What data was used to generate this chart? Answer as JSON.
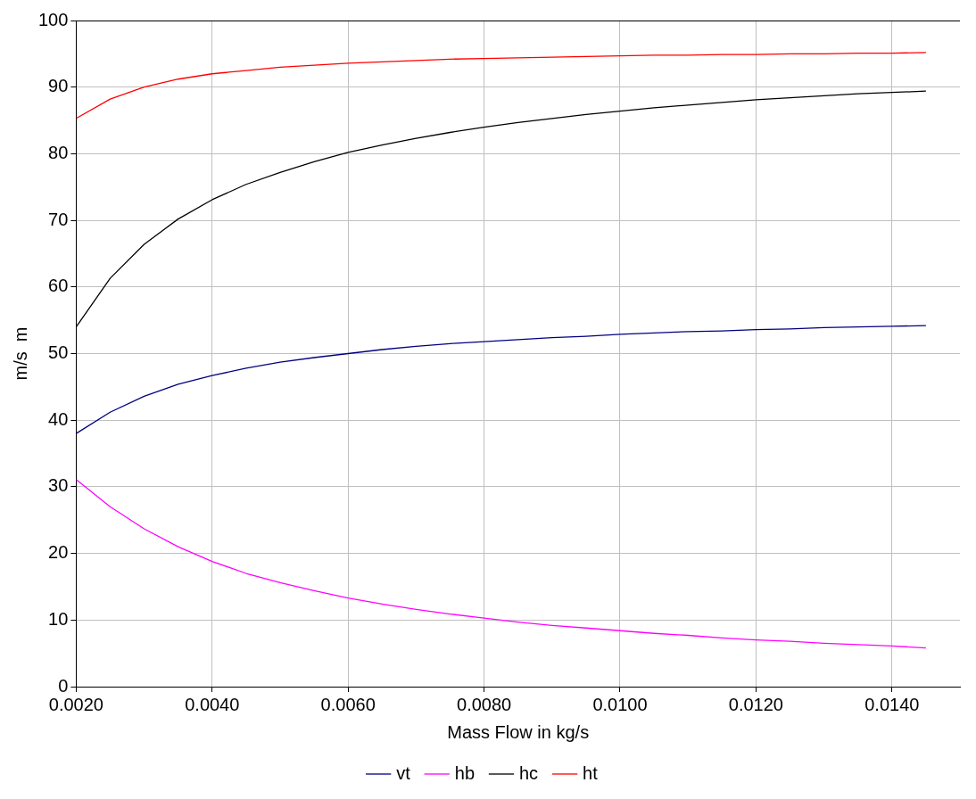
{
  "chart_data": {
    "type": "line",
    "xlabel": "Mass Flow in kg/s",
    "ylabel": "m/s  m",
    "x": [
      0.002,
      0.0025,
      0.003,
      0.0035,
      0.004,
      0.0045,
      0.005,
      0.0055,
      0.006,
      0.0065,
      0.007,
      0.0075,
      0.008,
      0.0085,
      0.009,
      0.0095,
      0.01,
      0.0105,
      0.011,
      0.0115,
      0.012,
      0.0125,
      0.013,
      0.0135,
      0.014,
      0.0145
    ],
    "series": [
      {
        "name": "vt",
        "color": "#000080",
        "values": [
          38.0,
          41.2,
          43.6,
          45.4,
          46.7,
          47.8,
          48.7,
          49.4,
          50.0,
          50.6,
          51.1,
          51.5,
          51.8,
          52.1,
          52.4,
          52.6,
          52.9,
          53.1,
          53.3,
          53.4,
          53.6,
          53.7,
          53.9,
          54.0,
          54.1,
          54.2
        ]
      },
      {
        "name": "hb",
        "color": "#ff00ff",
        "values": [
          31.1,
          27.0,
          23.7,
          21.0,
          18.8,
          17.0,
          15.6,
          14.4,
          13.3,
          12.4,
          11.6,
          10.9,
          10.3,
          9.7,
          9.2,
          8.8,
          8.4,
          8.0,
          7.7,
          7.3,
          7.0,
          6.8,
          6.5,
          6.3,
          6.1,
          5.8
        ]
      },
      {
        "name": "hc",
        "color": "#000000",
        "values": [
          54.0,
          61.3,
          66.4,
          70.2,
          73.1,
          75.4,
          77.2,
          78.8,
          80.2,
          81.3,
          82.3,
          83.2,
          84.0,
          84.7,
          85.3,
          85.9,
          86.4,
          86.9,
          87.3,
          87.7,
          88.1,
          88.4,
          88.7,
          89.0,
          89.2,
          89.4
        ]
      },
      {
        "name": "ht",
        "color": "#ff0000",
        "values": [
          85.3,
          88.2,
          90.0,
          91.2,
          92.0,
          92.5,
          93.0,
          93.3,
          93.6,
          93.8,
          94.0,
          94.2,
          94.3,
          94.4,
          94.5,
          94.6,
          94.7,
          94.8,
          94.8,
          94.9,
          94.9,
          95.0,
          95.0,
          95.1,
          95.1,
          95.2
        ]
      }
    ],
    "xlim": [
      0.002,
      0.015
    ],
    "xticks": [
      {
        "value": 0.002,
        "label": "0.0020"
      },
      {
        "value": 0.004,
        "label": "0.0040"
      },
      {
        "value": 0.006,
        "label": "0.0060"
      },
      {
        "value": 0.008,
        "label": "0.0080"
      },
      {
        "value": 0.01,
        "label": "0.0100"
      },
      {
        "value": 0.012,
        "label": "0.0120"
      },
      {
        "value": 0.014,
        "label": "0.0140"
      }
    ],
    "ylim": [
      0,
      100
    ],
    "yticks": [
      0,
      10,
      20,
      30,
      40,
      50,
      60,
      70,
      80,
      90,
      100
    ],
    "grid": true,
    "legend": "bottom",
    "marker": "none",
    "line_style": "solid"
  }
}
